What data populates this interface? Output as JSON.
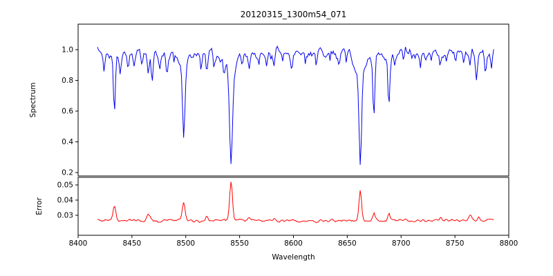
{
  "figure": {
    "title": "20120315_1300m54_071",
    "xlabel": "Wavelength",
    "ylabel_top": "Spectrum",
    "ylabel_bottom": "Error",
    "background": "#ffffff",
    "axis_color": "#000000"
  },
  "chart_data": {
    "type": "line",
    "title": "20120315_1300m54_071",
    "xlabel": "Wavelength",
    "xlim": [
      8400,
      8800
    ],
    "xticks": [
      8400,
      8450,
      8500,
      8550,
      8600,
      8650,
      8700,
      8750,
      8800
    ],
    "xtick_labels": [
      "8400",
      "8450",
      "8500",
      "8550",
      "8600",
      "8650",
      "8700",
      "8750",
      "8800"
    ],
    "x_start": 8418,
    "x_end": 8786,
    "x_step": 1,
    "seed": 20120315,
    "grid": false,
    "legend": "none",
    "panels": [
      {
        "name": "spectrum",
        "ylabel": "Spectrum",
        "color": "#0000ee",
        "ylim": [
          0.178,
          1.166
        ],
        "yticks": [
          0.2,
          0.4,
          0.6,
          0.8,
          1.0
        ],
        "ytick_labels": [
          "0.2",
          "0.4",
          "0.6",
          "0.8",
          "1.0"
        ],
        "continuum": 0.975,
        "noise_amp": 0.055,
        "absorption_lines": [
          [
            8498.02,
            0.44,
            1.1
          ],
          [
            8498.02,
            0.09,
            3.6
          ],
          [
            8542.09,
            0.58,
            1.3
          ],
          [
            8542.09,
            0.16,
            5.0
          ],
          [
            8662.14,
            0.56,
            1.2
          ],
          [
            8662.14,
            0.14,
            4.4
          ],
          [
            8424.2,
            0.1,
            0.8
          ],
          [
            8433.7,
            0.36,
            0.9
          ],
          [
            8439.0,
            0.09,
            0.7
          ],
          [
            8446.5,
            0.11,
            0.8
          ],
          [
            8452.0,
            0.07,
            0.7
          ],
          [
            8459.2,
            0.08,
            0.7
          ],
          [
            8465.3,
            0.12,
            0.8
          ],
          [
            8468.8,
            0.15,
            0.9
          ],
          [
            8476.0,
            0.08,
            0.7
          ],
          [
            8482.3,
            0.12,
            0.8
          ],
          [
            8489.0,
            0.06,
            0.6
          ],
          [
            8514.1,
            0.1,
            0.8
          ],
          [
            8519.6,
            0.14,
            0.9
          ],
          [
            8526.0,
            0.08,
            0.7
          ],
          [
            8535.5,
            0.08,
            0.7
          ],
          [
            8552.4,
            0.08,
            0.7
          ],
          [
            8559.2,
            0.11,
            0.8
          ],
          [
            8568.0,
            0.06,
            0.6
          ],
          [
            8575.3,
            0.08,
            0.7
          ],
          [
            8582.0,
            0.11,
            0.8
          ],
          [
            8590.0,
            0.06,
            0.6
          ],
          [
            8598.4,
            0.1,
            0.8
          ],
          [
            8611.0,
            0.07,
            0.7
          ],
          [
            8621.2,
            0.09,
            0.7
          ],
          [
            8634.0,
            0.07,
            0.6
          ],
          [
            8642.5,
            0.08,
            0.7
          ],
          [
            8649.0,
            0.06,
            0.6
          ],
          [
            8674.7,
            0.4,
            0.9
          ],
          [
            8688.6,
            0.34,
            0.9
          ],
          [
            8694.0,
            0.09,
            0.7
          ],
          [
            8702.3,
            0.08,
            0.7
          ],
          [
            8710.0,
            0.06,
            0.6
          ],
          [
            8718.1,
            0.08,
            0.7
          ],
          [
            8728.0,
            0.06,
            0.6
          ],
          [
            8736.4,
            0.09,
            0.7
          ],
          [
            8742.0,
            0.06,
            0.6
          ],
          [
            8750.6,
            0.08,
            0.7
          ],
          [
            8758.0,
            0.06,
            0.6
          ],
          [
            8764.2,
            0.09,
            0.7
          ],
          [
            8770.0,
            0.15,
            0.8
          ],
          [
            8778.2,
            0.13,
            0.8
          ],
          [
            8784.0,
            0.1,
            0.7
          ]
        ]
      },
      {
        "name": "error",
        "ylabel": "Error",
        "color": "#ff0000",
        "ylim": [
          0.0168,
          0.055
        ],
        "yticks": [
          0.03,
          0.04,
          0.05
        ],
        "ytick_labels": [
          "0.03",
          "0.04",
          "0.05"
        ],
        "baseline": 0.0265,
        "noise_amp": 0.0015,
        "peaks": [
          [
            8433.7,
            0.0105,
            1.3
          ],
          [
            8465.5,
            0.0045,
            1.5
          ],
          [
            8498.0,
            0.0125,
            1.3
          ],
          [
            8519.6,
            0.003,
            1.2
          ],
          [
            8542.1,
            0.0255,
            1.3
          ],
          [
            8559.2,
            0.0025,
            1.2
          ],
          [
            8582.0,
            0.002,
            1.2
          ],
          [
            8662.1,
            0.0205,
            1.2
          ],
          [
            8674.7,
            0.0045,
            1.0
          ],
          [
            8688.6,
            0.005,
            1.0
          ],
          [
            8736.4,
            0.002,
            1.0
          ],
          [
            8764.5,
            0.0035,
            1.2
          ],
          [
            8772.0,
            0.0025,
            1.0
          ]
        ]
      }
    ]
  }
}
